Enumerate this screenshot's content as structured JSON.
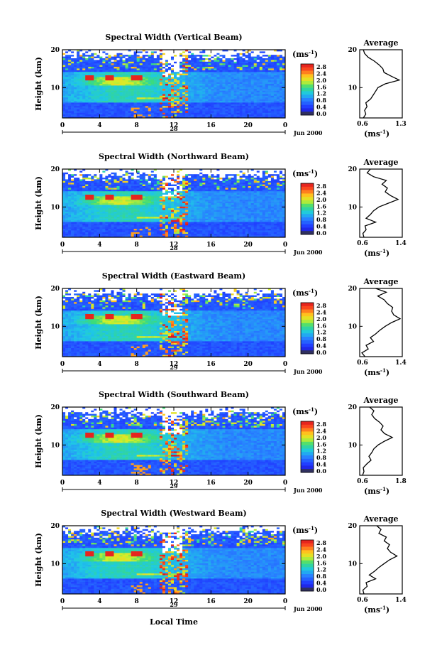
{
  "common": {
    "ylabel": "Height (km)",
    "x_ticks": [
      "0",
      "4",
      "8",
      "12",
      "16",
      "20",
      "0"
    ],
    "y_ticks": [
      "20",
      "10"
    ],
    "month_label": "Jun 2000",
    "colorbar_unit": "(ms",
    "colorbar_unit_exp": "-1",
    "colorbar_unit_close": ")",
    "colorbar_ticks": [
      "2.8",
      "2.4",
      "2.0",
      "1.6",
      "1.2",
      "0.8",
      "0.4",
      "0.0"
    ],
    "avg_title": "Average",
    "avg_unit": "(ms",
    "avg_unit_exp": "-1",
    "avg_unit_close": ")",
    "xlabel": "Local Time"
  },
  "chart_data": [
    {
      "type": "heatmap",
      "title": "Spectral Width (Vertical Beam)",
      "day_label": "28",
      "x_range": [
        0,
        24
      ],
      "y_range": [
        2,
        20
      ],
      "color_range": [
        0.0,
        3.0
      ],
      "profile": {
        "title": "Average",
        "xlim": [
          0.6,
          1.3
        ],
        "x_ticks": [
          "0.6",
          "1.3"
        ],
        "heights": [
          2,
          3,
          4,
          5,
          6,
          7,
          8,
          9,
          10,
          11,
          12,
          13,
          14,
          15,
          16,
          17,
          18,
          19,
          20
        ],
        "values": [
          0.66,
          0.7,
          0.68,
          0.72,
          0.7,
          0.78,
          0.82,
          0.86,
          0.9,
          1.02,
          1.25,
          1.12,
          1.0,
          0.98,
          0.92,
          0.84,
          0.74,
          0.68,
          0.66
        ]
      }
    },
    {
      "type": "heatmap",
      "title": "Spectral Width (Northward Beam)",
      "day_label": "28",
      "x_range": [
        0,
        24
      ],
      "y_range": [
        2,
        20
      ],
      "color_range": [
        0.0,
        3.0
      ],
      "profile": {
        "title": "Average",
        "xlim": [
          0.6,
          1.4
        ],
        "x_ticks": [
          "0.6",
          "1.4"
        ],
        "heights": [
          2,
          3,
          4,
          5,
          6,
          7,
          8,
          9,
          10,
          11,
          12,
          13,
          14,
          15,
          16,
          17,
          18,
          19,
          20
        ],
        "values": [
          0.68,
          0.66,
          0.72,
          0.7,
          0.9,
          0.72,
          0.8,
          0.86,
          0.96,
          1.14,
          1.32,
          1.18,
          1.08,
          1.12,
          1.02,
          1.1,
          0.86,
          0.74,
          0.8
        ]
      }
    },
    {
      "type": "heatmap",
      "title": "Spectral Width (Eastward Beam)",
      "day_label": "29",
      "x_range": [
        0,
        24
      ],
      "y_range": [
        2,
        20
      ],
      "color_range": [
        0.0,
        3.0
      ],
      "profile": {
        "title": "Average",
        "xlim": [
          0.6,
          1.4
        ],
        "x_ticks": [
          "0.6",
          "1.4"
        ],
        "heights": [
          2,
          3,
          4,
          5,
          6,
          7,
          8,
          9,
          10,
          11,
          12,
          13,
          14,
          15,
          16,
          17,
          18,
          19,
          20
        ],
        "values": [
          0.7,
          0.64,
          0.76,
          0.72,
          0.86,
          0.8,
          0.9,
          0.98,
          1.08,
          1.2,
          1.36,
          1.24,
          1.2,
          1.22,
          1.12,
          1.06,
          0.94,
          1.1,
          0.9
        ]
      }
    },
    {
      "type": "heatmap",
      "title": "Spectral Width (Southward Beam)",
      "day_label": "29",
      "x_range": [
        0,
        24
      ],
      "y_range": [
        2,
        20
      ],
      "color_range": [
        0.0,
        3.0
      ],
      "profile": {
        "title": "Average",
        "xlim": [
          0.6,
          1.8
        ],
        "x_ticks": [
          "0.6",
          "1.8"
        ],
        "heights": [
          2,
          3,
          4,
          5,
          6,
          7,
          8,
          9,
          10,
          11,
          12,
          13,
          14,
          15,
          16,
          17,
          18,
          19,
          20
        ],
        "values": [
          0.68,
          0.72,
          0.7,
          0.8,
          0.92,
          0.86,
          0.94,
          1.0,
          1.12,
          1.3,
          1.52,
          1.3,
          1.2,
          1.26,
          1.16,
          1.02,
          0.94,
          1.0,
          0.88
        ]
      }
    },
    {
      "type": "heatmap",
      "title": "Spectral Width (Westward Beam)",
      "day_label": "29",
      "x_range": [
        0,
        24
      ],
      "y_range": [
        2,
        20
      ],
      "color_range": [
        0.0,
        3.0
      ],
      "profile": {
        "title": "Average",
        "xlim": [
          0.6,
          1.4
        ],
        "x_ticks": [
          "0.6",
          "1.4"
        ],
        "heights": [
          2,
          3,
          4,
          5,
          6,
          7,
          8,
          9,
          10,
          11,
          12,
          13,
          14,
          15,
          16,
          17,
          18,
          19,
          20
        ],
        "values": [
          0.68,
          0.66,
          0.74,
          0.72,
          0.9,
          0.78,
          0.88,
          0.96,
          1.06,
          1.16,
          1.3,
          1.18,
          1.12,
          1.16,
          1.06,
          1.1,
          0.96,
          1.0,
          0.92
        ]
      }
    }
  ]
}
